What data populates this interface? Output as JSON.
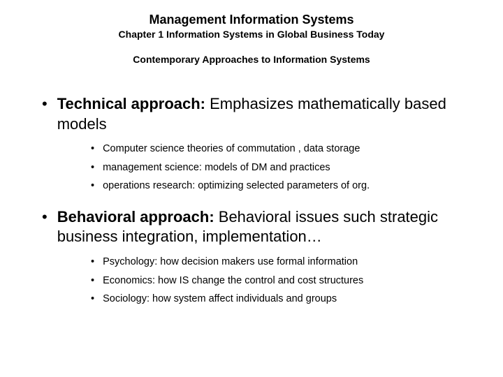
{
  "header": {
    "title": "Management Information Systems",
    "subtitle": "Chapter 1 Information Systems in Global Business Today",
    "section": "Contemporary Approaches to Information Systems"
  },
  "bullets": [
    {
      "lead": "Technical approach:",
      "body": " Emphasizes mathematically based models",
      "subs": [
        "Computer science theories of commutation , data storage",
        "management science: models of DM and practices",
        "operations research: optimizing selected parameters of org."
      ]
    },
    {
      "lead": "Behavioral approach:",
      "body": " Behavioral issues such strategic business integration, implementation…",
      "subs": [
        "Psychology: how decision makers use formal information",
        "Economics: how IS change the control and cost structures",
        "Sociology: how system affect individuals and groups"
      ]
    }
  ],
  "colors": {
    "background": "#ffffff",
    "text": "#000000"
  },
  "typography": {
    "title_fontsize": 18,
    "subtitle_fontsize": 14,
    "section_fontsize": 14,
    "main_bullet_fontsize": 22,
    "sub_bullet_fontsize": 14.5,
    "font_family": "Arial"
  }
}
